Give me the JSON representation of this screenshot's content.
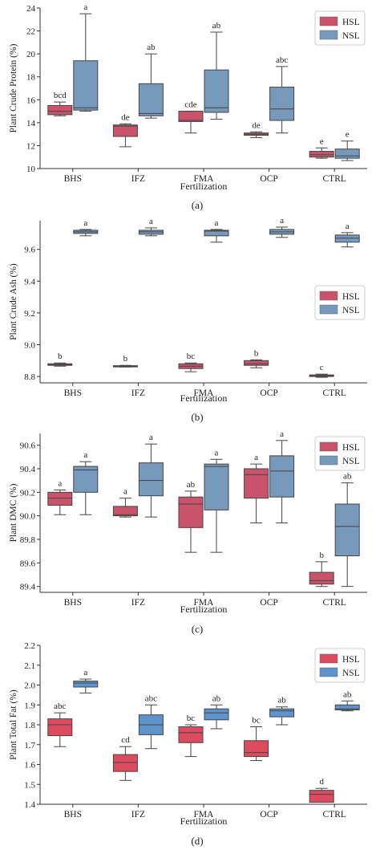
{
  "figure": {
    "legend_labels": [
      "HSL",
      "NSL"
    ],
    "colors": {
      "HSL": "#c9536a",
      "NSL": "#7799bb",
      "HSL_d": "#dd4b5e",
      "NSL_d": "#5f93cc"
    }
  },
  "chart_data": [
    {
      "type": "box",
      "panel_label": "(a)",
      "xlabel": "Fertilization",
      "ylabel": "Plant Crude Protein (%)",
      "ylim": [
        10,
        24
      ],
      "yticks": [
        "10",
        "12",
        "14",
        "16",
        "18",
        "20",
        "22",
        "24"
      ],
      "categories": [
        "BHS",
        "IFZ",
        "FMA",
        "OCP",
        "CTRL"
      ],
      "legend_position": "top-right",
      "series": [
        {
          "name": "HSL",
          "boxes": [
            {
              "min": 14.6,
              "q1": 14.7,
              "median": 15.0,
              "q3": 15.5,
              "max": 15.8,
              "letter": "bcd"
            },
            {
              "min": 11.9,
              "q1": 12.8,
              "median": 13.7,
              "q3": 13.8,
              "max": 13.9,
              "letter": "de"
            },
            {
              "min": 13.1,
              "q1": 14.1,
              "median": 14.2,
              "q3": 15.0,
              "max": 15.0,
              "letter": "cde"
            },
            {
              "min": 12.7,
              "q1": 12.9,
              "median": 13.0,
              "q3": 13.1,
              "max": 13.2,
              "letter": "de"
            },
            {
              "min": 10.9,
              "q1": 11.0,
              "median": 11.2,
              "q3": 11.5,
              "max": 11.8,
              "letter": "e"
            }
          ]
        },
        {
          "name": "NSL",
          "boxes": [
            {
              "min": 15.0,
              "q1": 15.1,
              "median": 15.3,
              "q3": 19.4,
              "max": 23.5,
              "letter": "a"
            },
            {
              "min": 14.4,
              "q1": 14.6,
              "median": 14.8,
              "q3": 17.4,
              "max": 20.0,
              "letter": "ab"
            },
            {
              "min": 14.3,
              "q1": 14.9,
              "median": 15.3,
              "q3": 18.6,
              "max": 21.9,
              "letter": "ab"
            },
            {
              "min": 13.1,
              "q1": 14.2,
              "median": 15.2,
              "q3": 17.1,
              "max": 18.9,
              "letter": "abc"
            },
            {
              "min": 10.7,
              "q1": 10.9,
              "median": 11.1,
              "q3": 11.7,
              "max": 12.4,
              "letter": "e"
            }
          ]
        }
      ]
    },
    {
      "type": "box",
      "panel_label": "(b)",
      "xlabel": "Fertilization",
      "ylabel": "Plant Crude Ash (%)",
      "ylim": [
        8.76,
        9.78
      ],
      "yticks": [
        "8.8",
        "9.0",
        "9.2",
        "9.4",
        "9.6"
      ],
      "categories": [
        "BHS",
        "IFZ",
        "FMA",
        "OCP",
        "CTRL"
      ],
      "legend_position": "center-right",
      "series": [
        {
          "name": "HSL",
          "boxes": [
            {
              "min": 8.865,
              "q1": 8.87,
              "median": 8.875,
              "q3": 8.88,
              "max": 8.885,
              "letter": "b"
            },
            {
              "min": 8.86,
              "q1": 8.862,
              "median": 8.865,
              "q3": 8.868,
              "max": 8.87,
              "letter": "b"
            },
            {
              "min": 8.83,
              "q1": 8.85,
              "median": 8.865,
              "q3": 8.88,
              "max": 8.885,
              "letter": "bc"
            },
            {
              "min": 8.855,
              "q1": 8.87,
              "median": 8.88,
              "q3": 8.9,
              "max": 8.905,
              "letter": "b"
            },
            {
              "min": 8.795,
              "q1": 8.8,
              "median": 8.805,
              "q3": 8.81,
              "max": 8.815,
              "letter": "c"
            }
          ]
        },
        {
          "name": "NSL",
          "boxes": [
            {
              "min": 9.685,
              "q1": 9.7,
              "median": 9.71,
              "q3": 9.72,
              "max": 9.725,
              "letter": "a"
            },
            {
              "min": 9.685,
              "q1": 9.695,
              "median": 9.71,
              "q3": 9.72,
              "max": 9.735,
              "letter": "a"
            },
            {
              "min": 9.645,
              "q1": 9.685,
              "median": 9.715,
              "q3": 9.72,
              "max": 9.725,
              "letter": "a"
            },
            {
              "min": 9.675,
              "q1": 9.695,
              "median": 9.71,
              "q3": 9.725,
              "max": 9.74,
              "letter": "a"
            },
            {
              "min": 9.615,
              "q1": 9.645,
              "median": 9.67,
              "q3": 9.69,
              "max": 9.705,
              "letter": "a"
            }
          ]
        }
      ]
    },
    {
      "type": "box",
      "panel_label": "(c)",
      "xlabel": "Fertilization",
      "ylabel": "Plant DMC (%)",
      "ylim": [
        89.35,
        90.7
      ],
      "yticks": [
        "89.4",
        "89.6",
        "89.8",
        "90.0",
        "90.2",
        "90.4",
        "90.6"
      ],
      "categories": [
        "BHS",
        "IFZ",
        "FMA",
        "OCP",
        "CTRL"
      ],
      "legend_position": "top-right",
      "series": [
        {
          "name": "HSL",
          "boxes": [
            {
              "min": 90.01,
              "q1": 90.09,
              "median": 90.15,
              "q3": 90.2,
              "max": 90.22,
              "letter": "a"
            },
            {
              "min": 89.99,
              "q1": 90.0,
              "median": 90.01,
              "q3": 90.08,
              "max": 90.15,
              "letter": "a"
            },
            {
              "min": 89.69,
              "q1": 89.9,
              "median": 90.1,
              "q3": 90.16,
              "max": 90.21,
              "letter": "ab"
            },
            {
              "min": 89.94,
              "q1": 90.15,
              "median": 90.35,
              "q3": 90.4,
              "max": 90.44,
              "letter": "a"
            },
            {
              "min": 89.4,
              "q1": 89.42,
              "median": 89.45,
              "q3": 89.52,
              "max": 89.61,
              "letter": "b"
            }
          ]
        },
        {
          "name": "NSL",
          "boxes": [
            {
              "min": 90.01,
              "q1": 90.2,
              "median": 90.39,
              "q3": 90.42,
              "max": 90.46,
              "letter": "a"
            },
            {
              "min": 89.99,
              "q1": 90.17,
              "median": 90.3,
              "q3": 90.45,
              "max": 90.61,
              "letter": "a"
            },
            {
              "min": 89.69,
              "q1": 90.05,
              "median": 90.42,
              "q3": 90.44,
              "max": 90.48,
              "letter": "a"
            },
            {
              "min": 89.94,
              "q1": 90.16,
              "median": 90.38,
              "q3": 90.51,
              "max": 90.64,
              "letter": "a"
            },
            {
              "min": 89.4,
              "q1": 89.66,
              "median": 89.91,
              "q3": 90.1,
              "max": 90.28,
              "letter": "ab"
            }
          ]
        }
      ]
    },
    {
      "type": "box",
      "panel_label": "(d)",
      "xlabel": "Fertilization",
      "ylabel": "Plant Total Fat (%)",
      "ylim": [
        1.4,
        2.2
      ],
      "yticks": [
        "1.4",
        "1.5",
        "1.6",
        "1.7",
        "1.8",
        "1.9",
        "2.0",
        "2.1",
        "2.2"
      ],
      "categories": [
        "BHS",
        "IFZ",
        "FMA",
        "OCP",
        "CTRL"
      ],
      "legend_position": "top-right",
      "series": [
        {
          "name": "HSL",
          "boxes": [
            {
              "min": 1.69,
              "q1": 1.745,
              "median": 1.8,
              "q3": 1.83,
              "max": 1.86,
              "letter": "abc"
            },
            {
              "min": 1.52,
              "q1": 1.565,
              "median": 1.61,
              "q3": 1.65,
              "max": 1.69,
              "letter": "cd"
            },
            {
              "min": 1.64,
              "q1": 1.71,
              "median": 1.76,
              "q3": 1.79,
              "max": 1.8,
              "letter": "bc"
            },
            {
              "min": 1.62,
              "q1": 1.64,
              "median": 1.66,
              "q3": 1.72,
              "max": 1.79,
              "letter": "bc"
            },
            {
              "min": 1.41,
              "q1": 1.41,
              "median": 1.45,
              "q3": 1.47,
              "max": 1.48,
              "letter": "d"
            }
          ]
        },
        {
          "name": "NSL",
          "boxes": [
            {
              "min": 1.96,
              "q1": 1.99,
              "median": 2.01,
              "q3": 2.02,
              "max": 2.03,
              "letter": "a"
            },
            {
              "min": 1.68,
              "q1": 1.75,
              "median": 1.8,
              "q3": 1.85,
              "max": 1.9,
              "letter": "abc"
            },
            {
              "min": 1.78,
              "q1": 1.825,
              "median": 1.86,
              "q3": 1.88,
              "max": 1.9,
              "letter": "ab"
            },
            {
              "min": 1.8,
              "q1": 1.84,
              "median": 1.87,
              "q3": 1.88,
              "max": 1.89,
              "letter": "ab"
            },
            {
              "min": 1.87,
              "q1": 1.875,
              "median": 1.88,
              "q3": 1.9,
              "max": 1.92,
              "letter": "ab"
            }
          ]
        }
      ]
    }
  ]
}
